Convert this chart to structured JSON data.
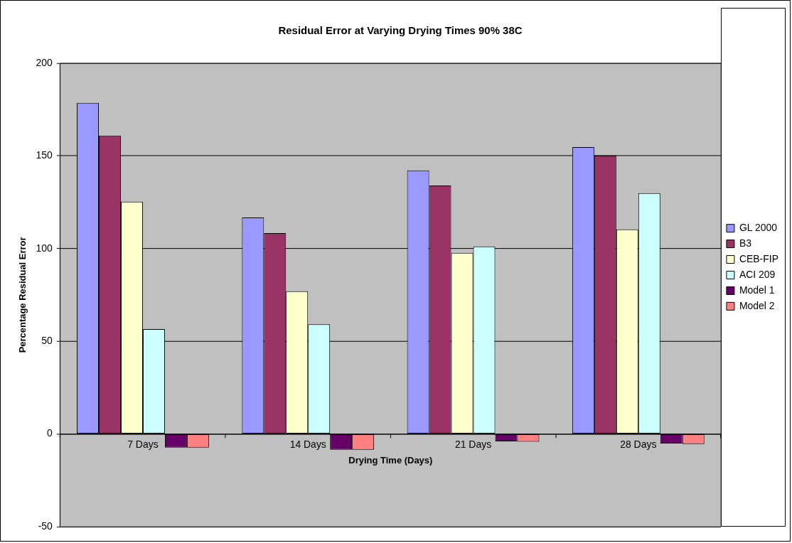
{
  "chart_data": {
    "type": "bar",
    "title": "Residual Error at Varying Drying Times 90% 38C",
    "xlabel": "Drying Time (Days)",
    "ylabel": "Percentage Residual Error",
    "categories": [
      "7 Days",
      "14 Days",
      "21 Days",
      "28 Days"
    ],
    "series": [
      {
        "name": "GL 2000",
        "color": "#9999ff",
        "values": [
          178.5,
          116.7,
          142.1,
          154.7
        ]
      },
      {
        "name": "B3",
        "color": "#993366",
        "values": [
          160.9,
          108.3,
          134.0,
          150.1
        ]
      },
      {
        "name": "CEB-FIP",
        "color": "#ffffcc",
        "values": [
          125.3,
          77.0,
          97.7,
          110.3
        ]
      },
      {
        "name": "ACI 209",
        "color": "#ccffff",
        "values": [
          56.6,
          59.2,
          101.1,
          129.9
        ]
      },
      {
        "name": "Model 1",
        "color": "#660066",
        "values": [
          -7.3,
          -8.5,
          -4.0,
          -5.1
        ]
      },
      {
        "name": "Model 2",
        "color": "#ff8080",
        "values": [
          -7.3,
          -8.5,
          -4.2,
          -5.4
        ]
      }
    ],
    "ylim": [
      -50,
      200
    ],
    "yticks": [
      -50,
      0,
      50,
      100,
      150,
      200
    ],
    "grid": "y",
    "legend": "right"
  }
}
